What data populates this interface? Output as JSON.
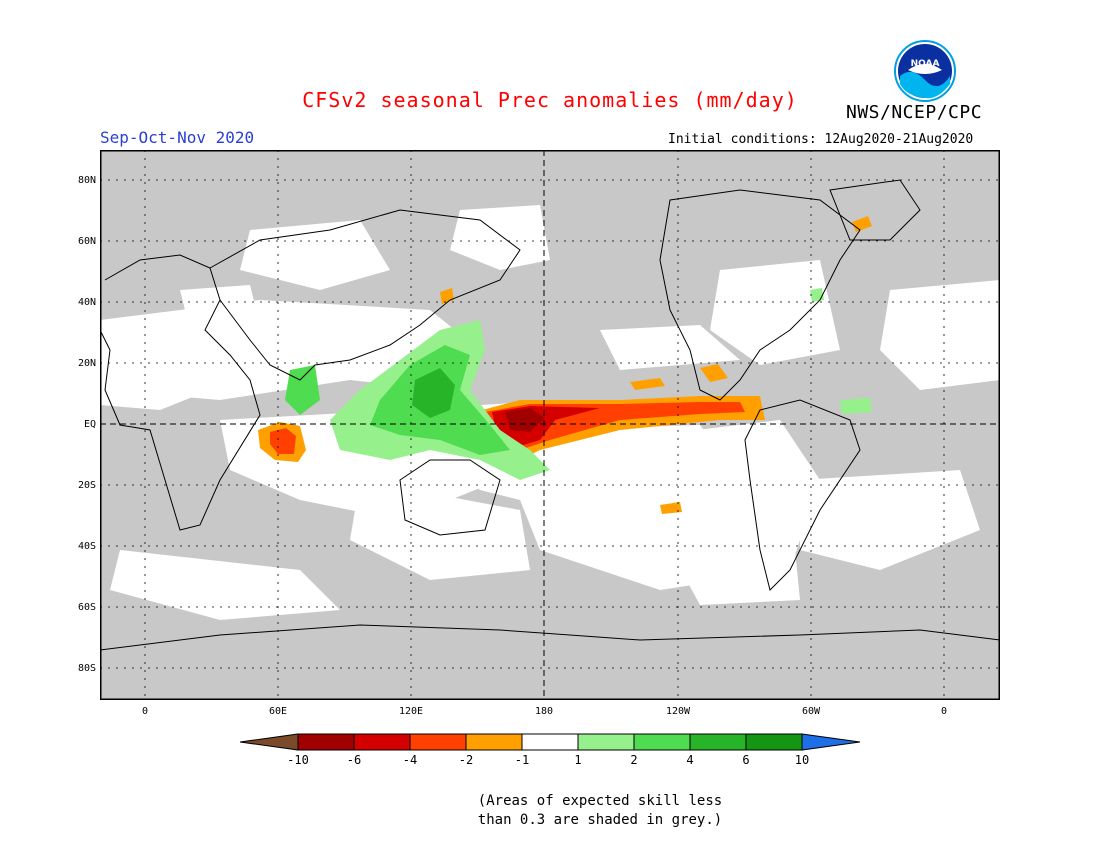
{
  "header": {
    "title": "CFSv2 seasonal Prec anomalies (mm/day)",
    "agency": "NWS/NCEP/CPC",
    "season": "Sep-Oct-Nov 2020",
    "initial_conditions": "Initial conditions: 12Aug2020-21Aug2020",
    "logo_text": "NOAA"
  },
  "map": {
    "lat_labels": [
      "80N",
      "60N",
      "40N",
      "20N",
      "EQ",
      "20S",
      "40S",
      "60S",
      "80S"
    ],
    "lon_labels": [
      "0",
      "60E",
      "120E",
      "180",
      "120W",
      "60W",
      "0"
    ],
    "colors": {
      "ocean_skill_grey": "#c8c8c8",
      "neutral": "#ffffff",
      "coast": "#000000"
    }
  },
  "colorbar": {
    "labels": [
      "-10",
      "-6",
      "-4",
      "-2",
      "-1",
      "1",
      "2",
      "4",
      "6",
      "10"
    ],
    "colors": [
      "#7a4a2a",
      "#a00000",
      "#d40000",
      "#ff4000",
      "#ffa000",
      "#ffffff",
      "#96f08c",
      "#50dc50",
      "#28b428",
      "#149614",
      "#1e6ee6"
    ]
  },
  "footnote": {
    "line1": "(Areas of expected skill less",
    "line2": "than 0.3 are shaded in grey.)"
  }
}
